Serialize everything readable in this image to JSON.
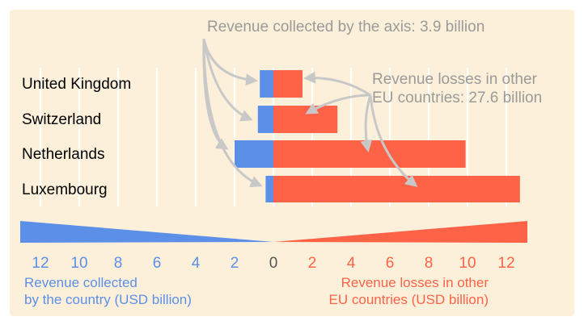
{
  "chart_data": {
    "type": "bar",
    "orientation": "horizontal",
    "diverging": true,
    "categories": [
      "United Kingdom",
      "Switzerland",
      "Netherlands",
      "Luxembourg"
    ],
    "series": [
      {
        "name": "Revenue collected by the country (USD billion)",
        "color": "#5b8fe8",
        "values": [
          0.7,
          0.8,
          2.0,
          0.4
        ]
      },
      {
        "name": "Revenue losses in other EU countries (USD billion)",
        "color": "#ff6347",
        "values": [
          1.5,
          3.3,
          9.9,
          12.7
        ]
      }
    ],
    "x_ticks_left": [
      "12",
      "10",
      "8",
      "6",
      "4",
      "2"
    ],
    "x_ticks_right": [
      "0",
      "2",
      "4",
      "6",
      "8",
      "10",
      "12"
    ],
    "xlim_left": [
      0,
      13
    ],
    "xlim_right": [
      0,
      13
    ],
    "grid": true,
    "annotations": {
      "collected": "Revenue collected by the axis: 3.9 billion",
      "losses_line1": "Revenue losses in other",
      "losses_line2": "EU countries: 27.6 billion"
    },
    "legend": {
      "left_line1": "Revenue collected",
      "left_line2": "by the country (USD billion)",
      "right_line1": "Revenue losses in other",
      "right_line2": "EU countries (USD billion)"
    },
    "colors": {
      "background": "#fdf0da",
      "blue": "#5b8fe8",
      "red": "#ff6347",
      "annotation": "#9a9a9a",
      "arrow": "#c8c8c8"
    }
  }
}
